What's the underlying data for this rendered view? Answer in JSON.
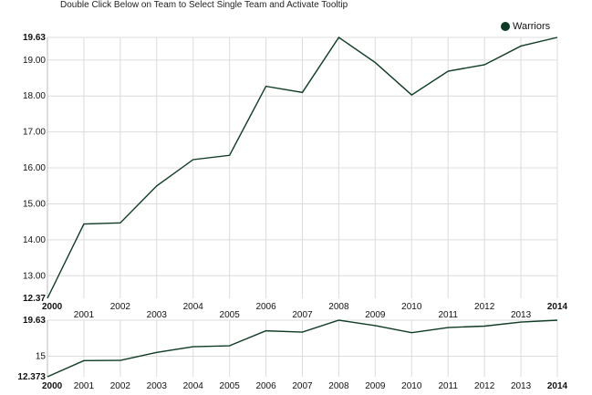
{
  "instruction": "Double Click Below on Team to Select Single Team and Activate Tooltip",
  "legend": {
    "label": "Warriors",
    "color": "#0d3b24"
  },
  "colors": {
    "line": "#0d3b24",
    "grid": "#dcdcdc",
    "axis": "#bbbbbb"
  },
  "chart_data": [
    {
      "type": "line",
      "x": [
        2000,
        2001,
        2002,
        2003,
        2004,
        2005,
        2006,
        2007,
        2008,
        2009,
        2010,
        2011,
        2012,
        2013,
        2014
      ],
      "series": [
        {
          "name": "Warriors",
          "values": [
            12.373,
            14.44,
            14.47,
            15.5,
            16.23,
            16.35,
            18.27,
            18.1,
            19.63,
            18.93,
            18.03,
            18.69,
            18.87,
            19.39,
            19.63
          ]
        }
      ],
      "ylim": [
        12.373,
        19.63
      ],
      "y_ticks": [
        "13.00",
        "14.00",
        "15.00",
        "16.00",
        "17.00",
        "18.00",
        "19.00"
      ],
      "y_min_label": "12.37",
      "y_max_label": "19.63",
      "x_tick_labels": [
        "2000",
        "2001",
        "2002",
        "2003",
        "2004",
        "2005",
        "2006",
        "2007",
        "2008",
        "2009",
        "2010",
        "2011",
        "2012",
        "2013",
        "2014"
      ],
      "grid": true
    },
    {
      "type": "line",
      "x": [
        2000,
        2001,
        2002,
        2003,
        2004,
        2005,
        2006,
        2007,
        2008,
        2009,
        2010,
        2011,
        2012,
        2013,
        2014
      ],
      "series": [
        {
          "name": "Warriors",
          "values": [
            12.373,
            14.44,
            14.47,
            15.5,
            16.23,
            16.35,
            18.27,
            18.1,
            19.63,
            18.93,
            18.03,
            18.69,
            18.87,
            19.39,
            19.63
          ]
        }
      ],
      "ylim": [
        12.373,
        19.63
      ],
      "y_ticks": [
        "15"
      ],
      "y_min_label": "12.373",
      "y_max_label": "19.63",
      "x_tick_labels": [
        "2000",
        "2001",
        "2002",
        "2003",
        "2004",
        "2005",
        "2006",
        "2007",
        "2008",
        "2009",
        "2010",
        "2011",
        "2012",
        "2013",
        "2014"
      ],
      "grid": true
    }
  ]
}
